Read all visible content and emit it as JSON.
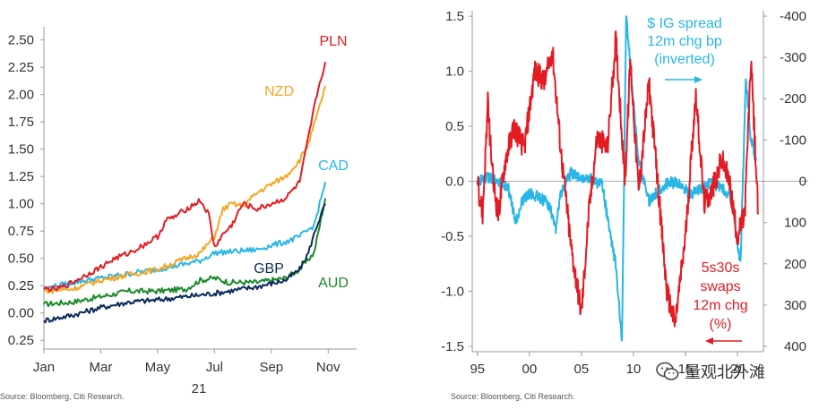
{
  "colors": {
    "PLN": "#e31b23",
    "NZD": "#f5a623",
    "CAD": "#29b6e6",
    "GBP": "#0d2a5c",
    "AUD": "#1a8a2a",
    "ig": "#29b6e6",
    "swaps": "#e31b23",
    "axis": "#999999",
    "zero": "#aaaaaa"
  },
  "watermark": {
    "text": "量观北外滩",
    "icon": "wechat-icon"
  },
  "chart_data": [
    {
      "type": "line",
      "xlabel": "",
      "ylabel": "",
      "x_tick_labels": [
        "Jan",
        "Mar",
        "May",
        "Jul",
        "Sep",
        "Nov"
      ],
      "x_tick_positions": [
        0,
        2,
        4,
        6,
        8,
        10
      ],
      "x_year_label": "21",
      "x_range": [
        0,
        11
      ],
      "y_tick_labels": [
        "0.25",
        "0.00",
        "0.25",
        "0.50",
        "0.75",
        "1.00",
        "1.25",
        "1.50",
        "1.75",
        "2.00",
        "2.25",
        "2.50"
      ],
      "y_tick_values": [
        -0.25,
        0,
        0.25,
        0.5,
        0.75,
        1.0,
        1.25,
        1.5,
        1.75,
        2.0,
        2.25,
        2.5
      ],
      "ylim": [
        -0.33,
        2.62
      ],
      "grid": false,
      "legend": "direct labels at line ends",
      "source": "Source: Bloomberg, Citi Research.",
      "series": [
        {
          "name": "PLN",
          "x": [
            0,
            0.5,
            1,
            1.5,
            2,
            2.5,
            3,
            3.5,
            4,
            4.3,
            4.6,
            5,
            5.5,
            5.8,
            6,
            6.3,
            6.6,
            7,
            7.5,
            8,
            8.5,
            9,
            9.3,
            9.6,
            9.9
          ],
          "y": [
            0.22,
            0.22,
            0.28,
            0.35,
            0.42,
            0.5,
            0.55,
            0.62,
            0.7,
            0.85,
            0.88,
            0.95,
            1.03,
            0.9,
            0.6,
            0.72,
            0.8,
            1.0,
            0.95,
            1.0,
            1.05,
            1.2,
            1.6,
            2.0,
            2.3
          ]
        },
        {
          "name": "NZD",
          "x": [
            0,
            1,
            1.5,
            2,
            3,
            4,
            4.5,
            5,
            5.5,
            6,
            6.3,
            6.6,
            7,
            7.5,
            8,
            8.5,
            9,
            9.3,
            9.6,
            9.9
          ],
          "y": [
            0.2,
            0.22,
            0.26,
            0.3,
            0.35,
            0.4,
            0.45,
            0.5,
            0.55,
            0.7,
            0.95,
            1.0,
            0.98,
            1.1,
            1.18,
            1.25,
            1.4,
            1.55,
            1.8,
            2.08
          ]
        },
        {
          "name": "CAD",
          "x": [
            0,
            1,
            2,
            3,
            4,
            5,
            5.5,
            6,
            6.5,
            7,
            7.5,
            8,
            8.5,
            9,
            9.5,
            9.9
          ],
          "y": [
            0.22,
            0.28,
            0.32,
            0.36,
            0.4,
            0.45,
            0.48,
            0.55,
            0.56,
            0.57,
            0.58,
            0.62,
            0.65,
            0.7,
            0.8,
            1.2
          ]
        },
        {
          "name": "GBP",
          "x": [
            0,
            1,
            2,
            3,
            4,
            5,
            6,
            7,
            7.5,
            8,
            8.5,
            9,
            9.3,
            9.6,
            9.9
          ],
          "y": [
            -0.07,
            -0.02,
            0.05,
            0.1,
            0.12,
            0.15,
            0.18,
            0.22,
            0.24,
            0.27,
            0.3,
            0.4,
            0.55,
            0.8,
            1.0
          ]
        },
        {
          "name": "AUD",
          "x": [
            0,
            1,
            2,
            3,
            4,
            5,
            5.5,
            6,
            6.5,
            7,
            7.5,
            8,
            8.5,
            9,
            9.5,
            9.9
          ],
          "y": [
            0.08,
            0.1,
            0.15,
            0.2,
            0.2,
            0.22,
            0.3,
            0.32,
            0.28,
            0.28,
            0.28,
            0.3,
            0.32,
            0.4,
            0.55,
            1.05
          ]
        }
      ]
    },
    {
      "type": "line",
      "xlabel": "",
      "ylabel": "",
      "x_tick_labels": [
        "95",
        "00",
        "05",
        "10",
        "15",
        "20"
      ],
      "x_tick_values": [
        1995,
        2000,
        2005,
        2010,
        2015,
        2020
      ],
      "x_range": [
        1994.5,
        2022.5
      ],
      "y_left_tick_labels": [
        "-1.5",
        "-1.0",
        "-0.5",
        "0.0",
        "0.5",
        "1.0",
        "1.5"
      ],
      "y_left_tick_values": [
        -1.5,
        -1.0,
        -0.5,
        0.0,
        0.5,
        1.0,
        1.5
      ],
      "y_left_range": [
        -1.55,
        1.55
      ],
      "y_right_tick_labels": [
        "400",
        "300",
        "200",
        "100",
        "0",
        "-100",
        "-200",
        "-300",
        "-400"
      ],
      "y_right_tick_values": [
        400,
        300,
        200,
        100,
        0,
        -100,
        -200,
        -300,
        -400
      ],
      "y_right_range_inverted": [
        413,
        -413
      ],
      "grid": false,
      "source": "Source: Bloomberg, Citi Research.",
      "annotations": {
        "ig_label": [
          "$ IG spread",
          "12m chg bp",
          "(inverted)"
        ],
        "ig_arrow": "right",
        "swaps_label": [
          "5s30s",
          "swaps",
          "12m chg",
          "(%)"
        ],
        "swaps_arrow": "left"
      },
      "series": [
        {
          "name": "$ IG spread 12m chg bp (inverted)",
          "axis": "right",
          "x": [
            1995,
            1996,
            1997,
            1998,
            1998.7,
            1999.3,
            2000,
            2001,
            2002,
            2002.5,
            2003,
            2004,
            2005,
            2006,
            2007,
            2007.7,
            2008.3,
            2008.9,
            2009.3,
            2009.8,
            2010.5,
            2011.5,
            2012.5,
            2013.5,
            2014.5,
            2015.5,
            2016.5,
            2017.5,
            2018.5,
            2019.3,
            2020.0,
            2020.3,
            2020.8,
            2021.3,
            2021.8
          ],
          "y": [
            0,
            -10,
            0,
            20,
            100,
            50,
            30,
            40,
            60,
            120,
            30,
            -20,
            -10,
            -5,
            10,
            120,
            200,
            390,
            -400,
            -250,
            -50,
            50,
            20,
            0,
            10,
            30,
            20,
            0,
            20,
            30,
            150,
            200,
            -250,
            -100,
            -50
          ]
        },
        {
          "name": "5s30s swaps 12m chg (%)",
          "axis": "left",
          "x": [
            1995,
            1995.5,
            1996,
            1996.5,
            1997,
            1997.7,
            1998.5,
            1999.5,
            2000.5,
            2001.5,
            2002.2,
            2003,
            2004,
            2004.5,
            2005,
            2005.7,
            2006.5,
            2007.5,
            2008.3,
            2009.2,
            2009.7,
            2010.5,
            2011.5,
            2012.5,
            2013.2,
            2014,
            2015,
            2016,
            2016.8,
            2017.5,
            2018.5,
            2019.2,
            2020,
            2020.7,
            2021.3,
            2022
          ],
          "y": [
            0,
            -0.3,
            0.7,
            0.0,
            -0.3,
            0.2,
            0.5,
            0.3,
            1.0,
            0.9,
            1.2,
            0.3,
            -0.6,
            -0.9,
            -1.2,
            -0.3,
            0.4,
            0.3,
            1.3,
            0.0,
            1.1,
            -0.1,
            0.9,
            -0.2,
            -1.0,
            -1.3,
            -0.5,
            0.8,
            -0.2,
            -0.1,
            0.2,
            0.0,
            -0.5,
            -0.3,
            1.1,
            -0.3
          ]
        }
      ]
    }
  ]
}
